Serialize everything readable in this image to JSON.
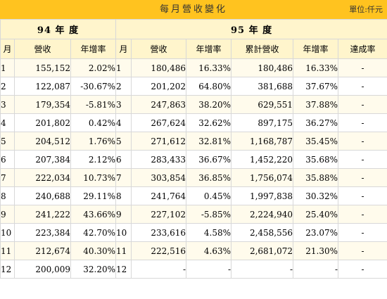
{
  "title": "每月營收變化",
  "unit_label": "單位:仟元",
  "years": {
    "y94": "94 年 度",
    "y95": "95 年 度"
  },
  "headers": {
    "month": "月",
    "revenue": "營收",
    "growth": "年增率",
    "month2": "月",
    "revenue2": "營收",
    "growth2": "年增率",
    "cumulative": "累計營收",
    "cum_growth": "年增率",
    "achievement": "達成率"
  },
  "rows": [
    {
      "m94": "1",
      "r94": "155,152",
      "g94": "2.02%",
      "m95": "1",
      "r95": "180,486",
      "g95": "16.33%",
      "cum": "180,486",
      "cg": "16.33%",
      "ach": "-"
    },
    {
      "m94": "2",
      "r94": "122,087",
      "g94": "-30.67%",
      "m95": "2",
      "r95": "201,202",
      "g95": "64.80%",
      "cum": "381,688",
      "cg": "37.67%",
      "ach": "-"
    },
    {
      "m94": "3",
      "r94": "179,354",
      "g94": "-5.81%",
      "m95": "3",
      "r95": "247,863",
      "g95": "38.20%",
      "cum": "629,551",
      "cg": "37.88%",
      "ach": "-"
    },
    {
      "m94": "4",
      "r94": "201,802",
      "g94": "0.42%",
      "m95": "4",
      "r95": "267,624",
      "g95": "32.62%",
      "cum": "897,175",
      "cg": "36.27%",
      "ach": "-"
    },
    {
      "m94": "5",
      "r94": "204,512",
      "g94": "1.76%",
      "m95": "5",
      "r95": "271,612",
      "g95": "32.81%",
      "cum": "1,168,787",
      "cg": "35.45%",
      "ach": "-"
    },
    {
      "m94": "6",
      "r94": "207,384",
      "g94": "2.12%",
      "m95": "6",
      "r95": "283,433",
      "g95": "36.67%",
      "cum": "1,452,220",
      "cg": "35.68%",
      "ach": "-"
    },
    {
      "m94": "7",
      "r94": "222,034",
      "g94": "10.73%",
      "m95": "7",
      "r95": "303,854",
      "g95": "36.85%",
      "cum": "1,756,074",
      "cg": "35.88%",
      "ach": "-"
    },
    {
      "m94": "8",
      "r94": "240,688",
      "g94": "29.11%",
      "m95": "8",
      "r95": "241,764",
      "g95": "0.45%",
      "cum": "1,997,838",
      "cg": "30.32%",
      "ach": "-"
    },
    {
      "m94": "9",
      "r94": "241,222",
      "g94": "43.66%",
      "m95": "9",
      "r95": "227,102",
      "g95": "-5.85%",
      "cum": "2,224,940",
      "cg": "25.40%",
      "ach": "-"
    },
    {
      "m94": "10",
      "r94": "223,384",
      "g94": "42.70%",
      "m95": "10",
      "r95": "233,616",
      "g95": "4.58%",
      "cum": "2,458,556",
      "cg": "23.07%",
      "ach": "-"
    },
    {
      "m94": "11",
      "r94": "212,674",
      "g94": "40.30%",
      "m95": "11",
      "r95": "222,516",
      "g95": "4.63%",
      "cum": "2,681,072",
      "cg": "21.30%",
      "ach": "-"
    },
    {
      "m94": "12",
      "r94": "200,009",
      "g94": "32.20%",
      "m95": "12",
      "r95": "-",
      "g95": "-",
      "cum": "-",
      "cg": "-",
      "ach": "-"
    }
  ]
}
